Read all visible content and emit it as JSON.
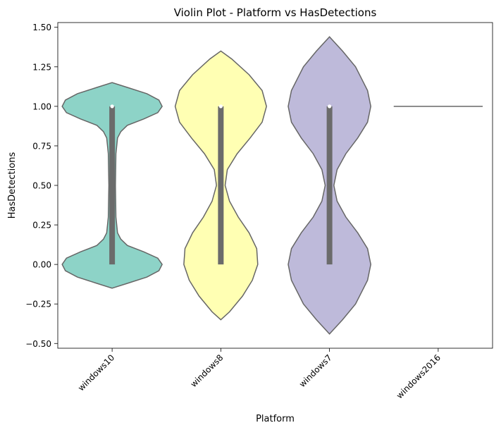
{
  "chart_data": {
    "type": "violin",
    "title": "Violin Plot - Platform vs HasDetections",
    "xlabel": "Platform",
    "ylabel": "HasDetections",
    "categories": [
      "windows10",
      "windows8",
      "windows7",
      "windows2016"
    ],
    "ylim": [
      -0.53,
      1.53
    ],
    "yticks": [
      -0.5,
      -0.25,
      0.0,
      0.25,
      0.5,
      0.75,
      1.0,
      1.25,
      1.5
    ],
    "ytick_labels": [
      "−0.50",
      "−0.25",
      "0.00",
      "0.25",
      "0.50",
      "0.75",
      "1.00",
      "1.25",
      "1.50"
    ],
    "violins": [
      {
        "category": "windows10",
        "color": "#8dd3c7",
        "profile": [
          [
            -0.15,
            0.0
          ],
          [
            -0.12,
            0.14
          ],
          [
            -0.08,
            0.32
          ],
          [
            -0.04,
            0.43
          ],
          [
            0.0,
            0.46
          ],
          [
            0.04,
            0.42
          ],
          [
            0.08,
            0.29
          ],
          [
            0.12,
            0.14
          ],
          [
            0.16,
            0.08
          ],
          [
            0.2,
            0.05
          ],
          [
            0.3,
            0.035
          ],
          [
            0.5,
            0.03
          ],
          [
            0.7,
            0.035
          ],
          [
            0.8,
            0.05
          ],
          [
            0.84,
            0.08
          ],
          [
            0.88,
            0.14
          ],
          [
            0.92,
            0.29
          ],
          [
            0.96,
            0.42
          ],
          [
            1.0,
            0.46
          ],
          [
            1.04,
            0.43
          ],
          [
            1.08,
            0.32
          ],
          [
            1.12,
            0.14
          ],
          [
            1.15,
            0.0
          ]
        ],
        "box": {
          "q1": 0.0,
          "q3": 1.0,
          "median": 1.0
        }
      },
      {
        "category": "windows8",
        "color": "#ffffb3",
        "profile": [
          [
            -0.35,
            0.0
          ],
          [
            -0.3,
            0.08
          ],
          [
            -0.2,
            0.2
          ],
          [
            -0.1,
            0.29
          ],
          [
            0.0,
            0.34
          ],
          [
            0.1,
            0.33
          ],
          [
            0.2,
            0.26
          ],
          [
            0.3,
            0.16
          ],
          [
            0.4,
            0.08
          ],
          [
            0.5,
            0.04
          ],
          [
            0.6,
            0.06
          ],
          [
            0.7,
            0.15
          ],
          [
            0.8,
            0.27
          ],
          [
            0.9,
            0.38
          ],
          [
            1.0,
            0.42
          ],
          [
            1.1,
            0.38
          ],
          [
            1.2,
            0.26
          ],
          [
            1.3,
            0.1
          ],
          [
            1.35,
            0.0
          ]
        ],
        "box": {
          "q1": 0.0,
          "q3": 1.0,
          "median": 1.0
        }
      },
      {
        "category": "windows7",
        "color": "#bebada",
        "profile": [
          [
            -0.44,
            0.0
          ],
          [
            -0.35,
            0.12
          ],
          [
            -0.25,
            0.24
          ],
          [
            -0.1,
            0.35
          ],
          [
            0.0,
            0.38
          ],
          [
            0.1,
            0.35
          ],
          [
            0.2,
            0.26
          ],
          [
            0.3,
            0.15
          ],
          [
            0.4,
            0.07
          ],
          [
            0.5,
            0.04
          ],
          [
            0.6,
            0.07
          ],
          [
            0.7,
            0.15
          ],
          [
            0.8,
            0.26
          ],
          [
            0.9,
            0.35
          ],
          [
            1.0,
            0.38
          ],
          [
            1.1,
            0.35
          ],
          [
            1.25,
            0.24
          ],
          [
            1.35,
            0.12
          ],
          [
            1.44,
            0.0
          ]
        ],
        "box": {
          "q1": 0.0,
          "q3": 1.0,
          "median": 1.0
        }
      },
      {
        "category": "windows2016",
        "color": "#fb8072",
        "single_value": 1.0
      }
    ]
  }
}
